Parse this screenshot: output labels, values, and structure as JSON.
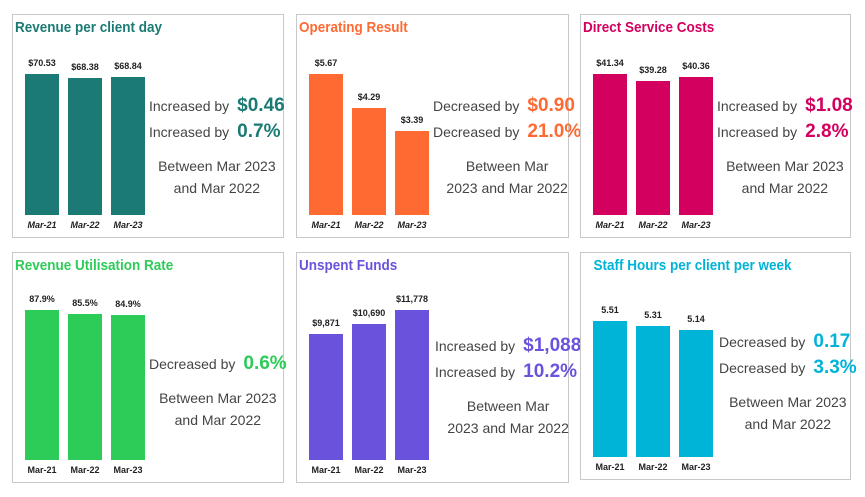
{
  "chart_data": [
    {
      "type": "bar",
      "title": "Revenue per client day",
      "categories": [
        "Mar-21",
        "Mar-22",
        "Mar-23"
      ],
      "values": [
        70.53,
        68.38,
        68.84
      ],
      "value_labels": [
        "$70.53",
        "$68.38",
        "$68.84"
      ],
      "color": "#1b7a74",
      "stats": [
        {
          "label": "Increased by",
          "value": "$0.46"
        },
        {
          "label": "Increased by",
          "value": "0.7%"
        }
      ],
      "between": [
        "Between Mar 2023",
        "and Mar 2022"
      ]
    },
    {
      "type": "bar",
      "title": "Operating Result",
      "categories": [
        "Mar-21",
        "Mar-22",
        "Mar-23"
      ],
      "values": [
        5.67,
        4.29,
        3.39
      ],
      "value_labels": [
        "$5.67",
        "$4.29",
        "$3.39"
      ],
      "color": "#ff6a33",
      "stats": [
        {
          "label": "Decreased by",
          "value": "$0.90"
        },
        {
          "label": "Decreased by",
          "value": "21.0%"
        }
      ],
      "between": [
        "Between Mar",
        "2023 and Mar 2022"
      ]
    },
    {
      "type": "bar",
      "title": "Direct Service Costs",
      "categories": [
        "Mar-21",
        "Mar-22",
        "Mar-23"
      ],
      "values": [
        41.34,
        39.28,
        40.36
      ],
      "value_labels": [
        "$41.34",
        "$39.28",
        "$40.36"
      ],
      "color": "#d3005f",
      "stats": [
        {
          "label": "Increased by",
          "value": "$1.08"
        },
        {
          "label": "Increased by",
          "value": "2.8%"
        }
      ],
      "between": [
        "Between Mar 2023",
        "and Mar 2022"
      ]
    },
    {
      "type": "bar",
      "title": "Revenue Utilisation Rate",
      "categories": [
        "Mar-21",
        "Mar-22",
        "Mar-23"
      ],
      "values": [
        87.9,
        85.5,
        84.9
      ],
      "value_labels": [
        "87.9%",
        "85.5%",
        "84.9%"
      ],
      "color": "#2dcb58",
      "stats": [
        {
          "label": "Decreased by",
          "value": "0.6%"
        }
      ],
      "between": [
        "Between Mar 2023",
        "and Mar 2022"
      ]
    },
    {
      "type": "bar",
      "title": "Unspent Funds",
      "categories": [
        "Mar-21",
        "Mar-22",
        "Mar-23"
      ],
      "values": [
        9871,
        10690,
        11778
      ],
      "value_labels": [
        "$9,871",
        "$10,690",
        "$11,778"
      ],
      "color": "#6b52dc",
      "stats": [
        {
          "label": "Increased by",
          "value": "$1,088"
        },
        {
          "label": "Increased by",
          "value": "10.2%"
        }
      ],
      "between": [
        "Between Mar",
        "2023 and Mar 2022"
      ]
    },
    {
      "type": "bar",
      "title": "Staff Hours per client per week",
      "categories": [
        "Mar-21",
        "Mar-22",
        "Mar-23"
      ],
      "values": [
        5.51,
        5.31,
        5.14
      ],
      "value_labels": [
        "5.51",
        "5.31",
        "5.14"
      ],
      "color": "#00b4d8",
      "stats": [
        {
          "label": "Decreased by",
          "value": "0.17"
        },
        {
          "label": "Decreased by",
          "value": "3.3%"
        }
      ],
      "between": [
        "Between Mar 2023",
        "and Mar 2022"
      ]
    }
  ]
}
